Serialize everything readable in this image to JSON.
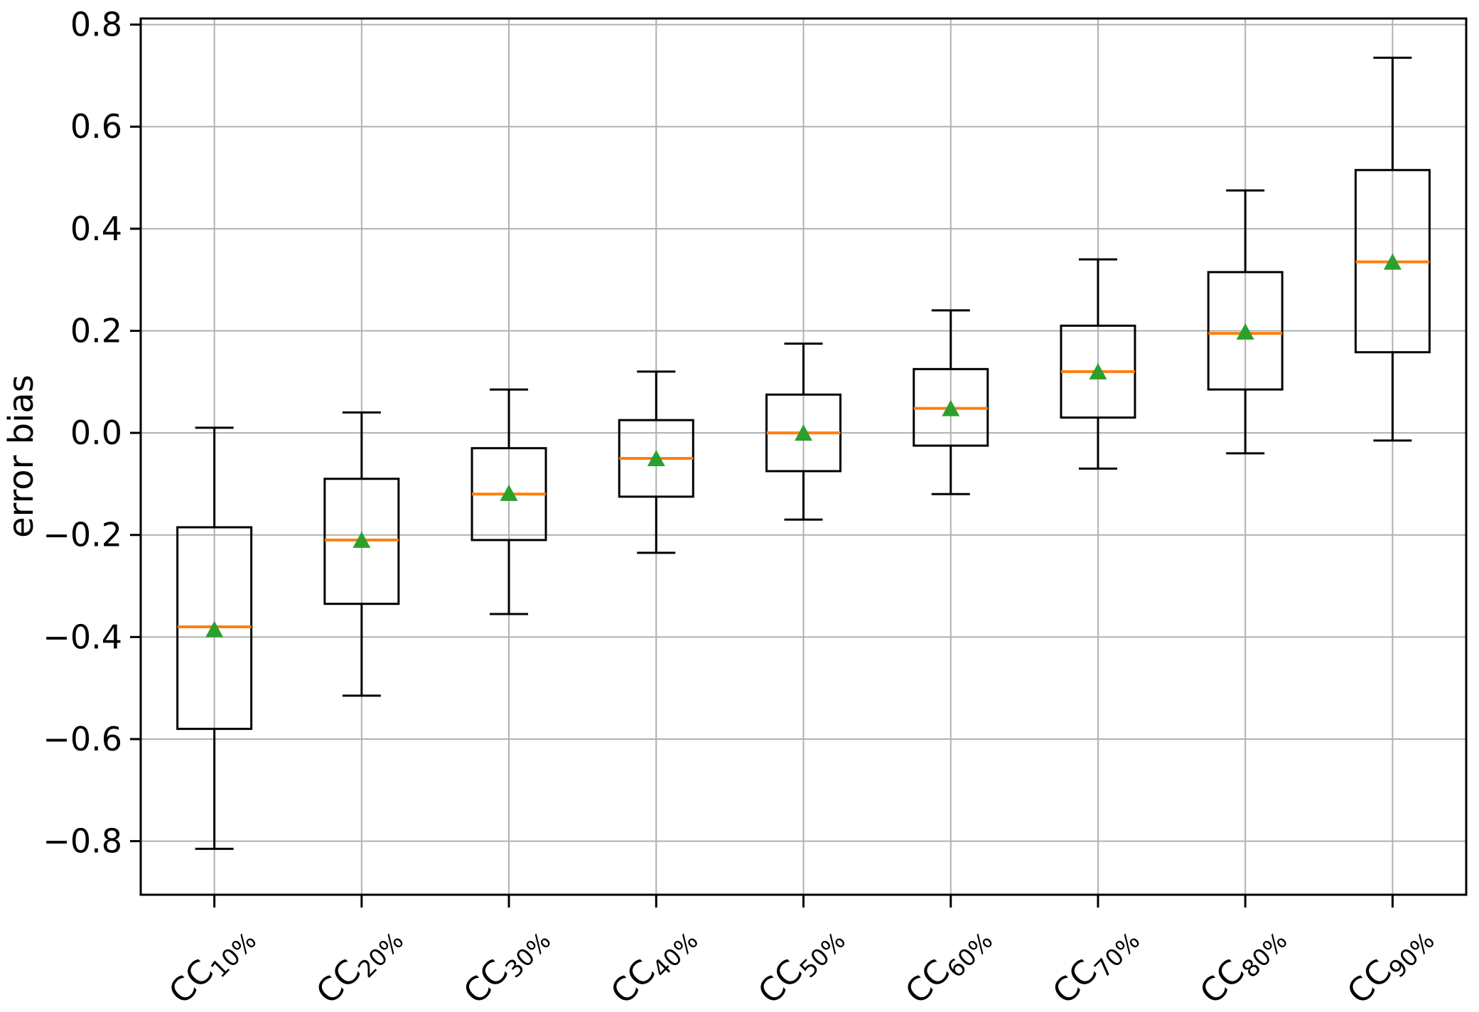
{
  "figure": {
    "background": "#ffffff"
  },
  "chart_data": {
    "type": "boxplot",
    "title": "",
    "xlabel": "",
    "ylabel": "error bias",
    "grid": true,
    "legend_position": "none",
    "yticks": [
      0.8,
      0.6,
      0.4,
      0.2,
      0.0,
      -0.2,
      -0.4,
      -0.6,
      -0.8
    ],
    "ylim": [
      -0.905,
      0.812
    ],
    "tick_labels": [
      {
        "base": "CC",
        "sub": "10%"
      },
      {
        "base": "CC",
        "sub": "20%"
      },
      {
        "base": "CC",
        "sub": "30%"
      },
      {
        "base": "CC",
        "sub": "40%"
      },
      {
        "base": "CC",
        "sub": "50%"
      },
      {
        "base": "CC",
        "sub": "60%"
      },
      {
        "base": "CC",
        "sub": "70%"
      },
      {
        "base": "CC",
        "sub": "80%"
      },
      {
        "base": "CC",
        "sub": "90%"
      }
    ],
    "boxes": [
      {
        "label": "CC10%",
        "whislo": -0.815,
        "q1": -0.58,
        "med": -0.38,
        "mean": -0.385,
        "q3": -0.185,
        "whishi": 0.01
      },
      {
        "label": "CC20%",
        "whislo": -0.515,
        "q1": -0.335,
        "med": -0.21,
        "mean": -0.21,
        "q3": -0.09,
        "whishi": 0.04
      },
      {
        "label": "CC30%",
        "whislo": -0.355,
        "q1": -0.21,
        "med": -0.12,
        "mean": -0.118,
        "q3": -0.03,
        "whishi": 0.085
      },
      {
        "label": "CC40%",
        "whislo": -0.235,
        "q1": -0.125,
        "med": -0.05,
        "mean": -0.05,
        "q3": 0.025,
        "whishi": 0.12
      },
      {
        "label": "CC50%",
        "whislo": -0.17,
        "q1": -0.075,
        "med": 0.0,
        "mean": 0.0,
        "q3": 0.075,
        "whishi": 0.175
      },
      {
        "label": "CC60%",
        "whislo": -0.12,
        "q1": -0.025,
        "med": 0.048,
        "mean": 0.048,
        "q3": 0.125,
        "whishi": 0.24
      },
      {
        "label": "CC70%",
        "whislo": -0.07,
        "q1": 0.03,
        "med": 0.12,
        "mean": 0.12,
        "q3": 0.21,
        "whishi": 0.34
      },
      {
        "label": "CC80%",
        "whislo": -0.04,
        "q1": 0.085,
        "med": 0.195,
        "mean": 0.198,
        "q3": 0.315,
        "whishi": 0.475
      },
      {
        "label": "CC90%",
        "whislo": -0.015,
        "q1": 0.158,
        "med": 0.335,
        "mean": 0.335,
        "q3": 0.515,
        "whishi": 0.735
      }
    ],
    "mean_marker_shape": "triangle-up",
    "colors": {
      "box_edge": "#000000",
      "whisker": "#000000",
      "median": "#ff7f0e",
      "mean_marker": "#2ca02c",
      "grid": "#b0b0b0",
      "spine": "#000000",
      "tick_text": "#000000",
      "background": "#ffffff"
    }
  }
}
